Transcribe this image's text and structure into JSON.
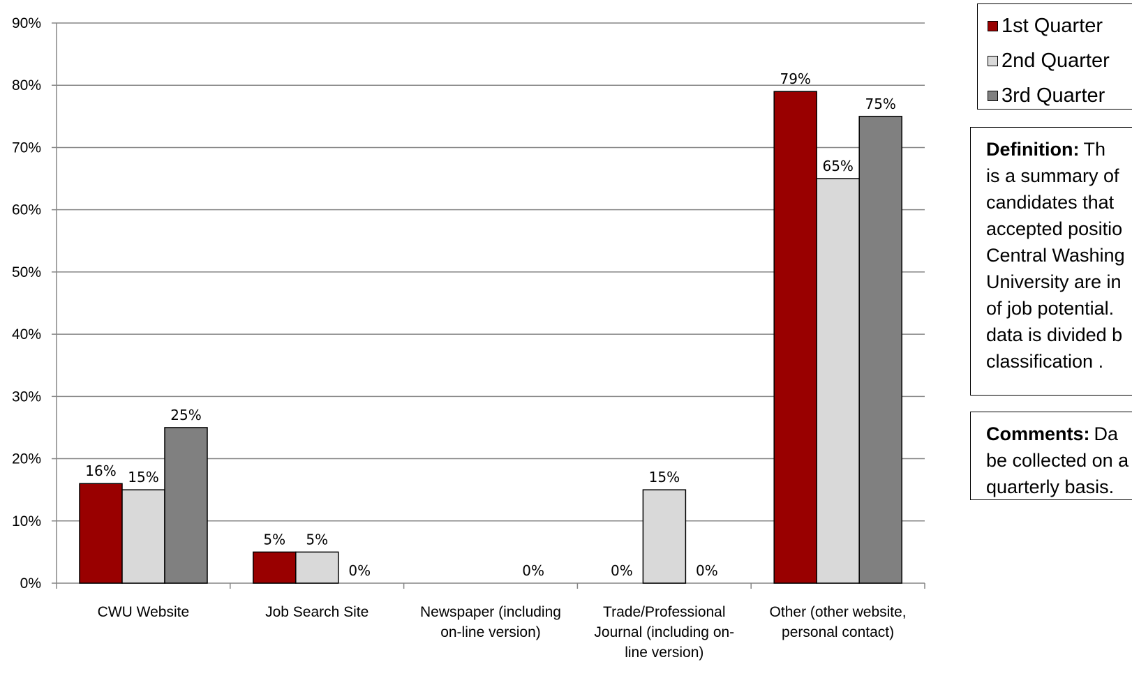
{
  "chart_data": {
    "type": "bar",
    "categories": [
      [
        "CWU Website"
      ],
      [
        "Job Search Site"
      ],
      [
        "Newspaper (including",
        "on-line version)"
      ],
      [
        "Trade/Professional",
        "Journal (including on-",
        "line version)"
      ],
      [
        "Other (other website,",
        "personal contact)"
      ]
    ],
    "series": [
      {
        "name": "1st Quarter",
        "color": "#990000",
        "values": [
          16,
          5,
          0,
          0,
          79
        ],
        "labels": [
          "16%",
          "5%",
          "",
          "",
          "79%"
        ]
      },
      {
        "name": "2nd Quarter",
        "color": "#d9d9d9",
        "values": [
          15,
          5,
          0,
          15,
          65
        ],
        "labels": [
          "15%",
          "5%",
          "",
          "15%",
          "65%"
        ]
      },
      {
        "name": "3rd Quarter",
        "color": "#808080",
        "values": [
          25,
          0,
          0,
          0,
          75
        ],
        "labels": [
          "25%",
          "0%",
          "0%",
          "0%",
          "75%"
        ]
      }
    ],
    "extra_labels": [
      {
        "category": 3,
        "series": 0,
        "text": "0%"
      }
    ],
    "ylim": [
      0,
      90
    ],
    "yticks": [
      "0%",
      "10%",
      "20%",
      "30%",
      "40%",
      "50%",
      "60%",
      "70%",
      "80%",
      "90%"
    ],
    "grid": true,
    "legend_position": "top-right"
  },
  "legend": {
    "items": [
      {
        "label": "1st Quarter",
        "color": "#990000"
      },
      {
        "label": "2nd Quarter",
        "color": "#d9d9d9"
      },
      {
        "label": "3rd Quarter",
        "color": "#808080"
      }
    ]
  },
  "definition": {
    "heading": "Definition:",
    "lines": [
      "Th",
      "is a summary of",
      "candidates that",
      "accepted positio",
      "Central Washing",
      "University are in",
      "of job potential.",
      "data is divided b",
      "classification ."
    ]
  },
  "comments": {
    "heading": "Comments:",
    "lines": [
      "Da",
      "be collected on a",
      "quarterly basis."
    ]
  }
}
